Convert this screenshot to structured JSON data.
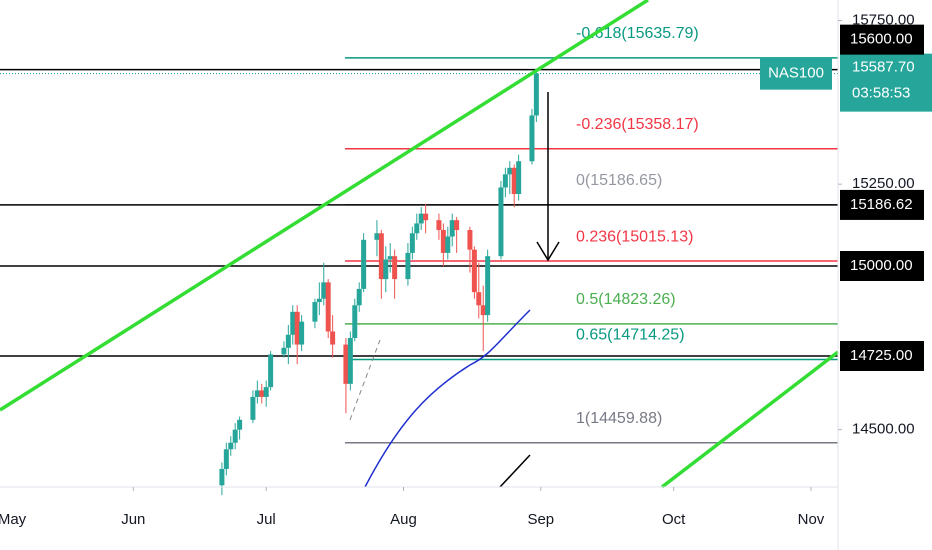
{
  "chart_data": {
    "type": "candlestick",
    "symbol": "NAS100",
    "countdown": "03:58:53",
    "up_color": "#26a69a",
    "down_color": "#ef5350",
    "xlim": [
      0.9,
      190.1
    ],
    "ylim": [
      14324.8,
      15812.7
    ],
    "xticks": [
      {
        "value": 0,
        "label": "May"
      },
      {
        "value": 31,
        "label": "Jun"
      },
      {
        "value": 61,
        "label": "Jul"
      },
      {
        "value": 92,
        "label": "Aug"
      },
      {
        "value": 123,
        "label": "Sep"
      },
      {
        "value": 153,
        "label": "Oct"
      },
      {
        "value": 184,
        "label": "Nov"
      }
    ],
    "yticks": [
      {
        "value": 15750,
        "label": "15750.00"
      },
      {
        "value": 15250,
        "label": "15250.00"
      },
      {
        "value": 14500,
        "label": "14500.00"
      }
    ],
    "x": [
      51,
      52,
      53,
      54,
      55,
      58,
      59,
      60,
      61,
      62,
      65,
      66,
      67,
      68,
      69,
      72,
      73,
      74,
      75,
      76,
      79,
      80,
      81,
      82,
      83,
      86,
      87,
      88,
      89,
      90,
      93,
      94,
      95,
      96,
      97,
      100,
      101,
      102,
      103,
      104,
      107,
      108,
      109,
      110,
      111,
      114,
      115,
      116,
      117,
      118,
      121,
      122
    ],
    "open": [
      14330,
      14380,
      14440,
      14460,
      14500,
      14530,
      14600,
      14620,
      14600,
      14630,
      14730,
      14750,
      14790,
      14860,
      14760,
      14830,
      14890,
      14900,
      14950,
      14800,
      14760,
      14640,
      14780,
      14880,
      14930,
      15080,
      15100,
      14960,
      15020,
      15030,
      14960,
      15040,
      15100,
      15130,
      15160,
      15140,
      15110,
      15040,
      15090,
      15140,
      15110,
      15050,
      14920,
      14880,
      14850,
      15030,
      15240,
      15280,
      15300,
      15220,
      15320,
      15460
    ],
    "high": [
      14400,
      14460,
      14480,
      14520,
      14540,
      14620,
      14650,
      14640,
      14650,
      14740,
      14770,
      14820,
      14880,
      14880,
      14850,
      14900,
      14950,
      15010,
      14960,
      14850,
      14780,
      14800,
      14900,
      14950,
      15100,
      15140,
      15110,
      15060,
      15070,
      15050,
      15070,
      15120,
      15160,
      15180,
      15190,
      15160,
      15130,
      15120,
      15160,
      15150,
      15120,
      15060,
      15010,
      14940,
      15050,
      15260,
      15300,
      15320,
      15310,
      15340,
      15480,
      15600
    ],
    "low": [
      14300,
      14360,
      14420,
      14440,
      14470,
      14520,
      14580,
      14580,
      14570,
      14620,
      14720,
      14700,
      14760,
      14700,
      14740,
      14810,
      14850,
      14880,
      14780,
      14720,
      14550,
      14620,
      14770,
      14860,
      14920,
      15030,
      14900,
      14920,
      14980,
      14900,
      14940,
      15020,
      15080,
      15110,
      15100,
      15080,
      15000,
      15020,
      15060,
      15040,
      14980,
      14900,
      14840,
      14740,
      14830,
      15020,
      15210,
      15220,
      15180,
      15200,
      15310,
      15440
    ],
    "close": [
      14380,
      14440,
      14460,
      14500,
      14530,
      14600,
      14620,
      14600,
      14630,
      14730,
      14750,
      14790,
      14860,
      14760,
      14830,
      14890,
      14900,
      14950,
      14800,
      14760,
      14640,
      14780,
      14880,
      14930,
      15080,
      15100,
      14960,
      15020,
      15030,
      14960,
      15040,
      15100,
      15130,
      15160,
      15140,
      15110,
      15040,
      15090,
      15140,
      15110,
      15050,
      14920,
      14880,
      14850,
      15030,
      15240,
      15280,
      15300,
      15220,
      15320,
      15460,
      15588
    ],
    "fib_levels": [
      {
        "label": "-0.618(15635.79)",
        "value": 15635.79,
        "color": "#089981"
      },
      {
        "label": "-0.236(15358.17)",
        "value": 15358.17,
        "color": "#f23645"
      },
      {
        "label": "0(15186.65)",
        "value": 15186.65,
        "color": "#9598a1"
      },
      {
        "label": "0.236(15015.13)",
        "value": 15015.13,
        "color": "#f23645"
      },
      {
        "label": "0.5(14823.26)",
        "value": 14823.26,
        "color": "#4caf50"
      },
      {
        "label": "0.65(14714.25)",
        "value": 14714.25,
        "color": "#089981"
      },
      {
        "label": "1(14459.88)",
        "value": 14459.88,
        "color": "#787b86"
      }
    ],
    "horizontal_lines": [
      {
        "value": 15600,
        "label": "15600.00"
      },
      {
        "value": 15186.62,
        "label": "15186.62"
      },
      {
        "value": 15000,
        "label": "15000.00"
      },
      {
        "value": 14725,
        "label": "14725.00"
      }
    ],
    "last_price": {
      "value": 15587.7,
      "label": "15587.70"
    }
  }
}
